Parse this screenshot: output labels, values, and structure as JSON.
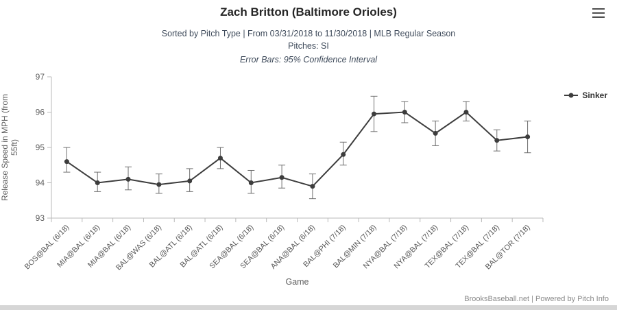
{
  "header": {
    "title": "Zach Britton (Baltimore Orioles)",
    "subtitle": "Sorted by Pitch Type | From 03/31/2018 to 11/30/2018 | MLB Regular Season",
    "pitches": "Pitches: SI",
    "error_note": "Error Bars: 95% Confidence Interval"
  },
  "chart_data": {
    "type": "line",
    "title": "Zach Britton (Baltimore Orioles)",
    "subtitle": "Sorted by Pitch Type | From 03/31/2018 to 11/30/2018 | MLB Regular Season | Pitches: SI | Error Bars: 95% Confidence Interval",
    "xlabel": "Game",
    "ylabel": "Release Speed in MPH (from 55ft)",
    "ylabel_lines": [
      "Release Speed in MPH (from",
      "55ft)"
    ],
    "ylim": [
      93,
      97
    ],
    "yticks": [
      93,
      94,
      95,
      96,
      97
    ],
    "grid": false,
    "legend_position": "right",
    "error_bars": "95% Confidence Interval",
    "categories": [
      "BOS@BAL (6/18)",
      "MIA@BAL (6/18)",
      "MIA@BAL (6/18)",
      "BAL@WAS (6/18)",
      "BAL@ATL (6/18)",
      "BAL@ATL (6/18)",
      "SEA@BAL (6/18)",
      "SEA@BAL (6/18)",
      "ANA@BAL (6/18)",
      "BAL@PHI (7/18)",
      "BAL@MIN (7/18)",
      "NYA@BAL (7/18)",
      "NYA@BAL (7/18)",
      "TEX@BAL (7/18)",
      "TEX@BAL (7/18)",
      "BAL@TOR (7/18)"
    ],
    "series": [
      {
        "name": "Sinker",
        "color": "#3d3d3d",
        "values": [
          94.6,
          94.0,
          94.1,
          93.95,
          94.05,
          94.7,
          94.0,
          94.15,
          93.9,
          94.8,
          95.95,
          96.0,
          95.4,
          96.0,
          95.2,
          95.3
        ],
        "error_low": [
          94.3,
          93.75,
          93.8,
          93.7,
          93.75,
          94.4,
          93.7,
          93.85,
          93.55,
          94.5,
          95.45,
          95.7,
          95.05,
          95.75,
          94.9,
          94.85
        ],
        "error_high": [
          95.0,
          94.3,
          94.45,
          94.25,
          94.4,
          95.0,
          94.35,
          94.5,
          94.25,
          95.15,
          96.45,
          96.3,
          95.75,
          96.3,
          95.5,
          95.75
        ]
      }
    ],
    "axis_color": "#b9b9b9",
    "label_color": "#5e5e5e",
    "error_bar_color": "#6e6e6e"
  },
  "footer": {
    "credit": "BrooksBaseball.net | Powered by Pitch Info"
  }
}
